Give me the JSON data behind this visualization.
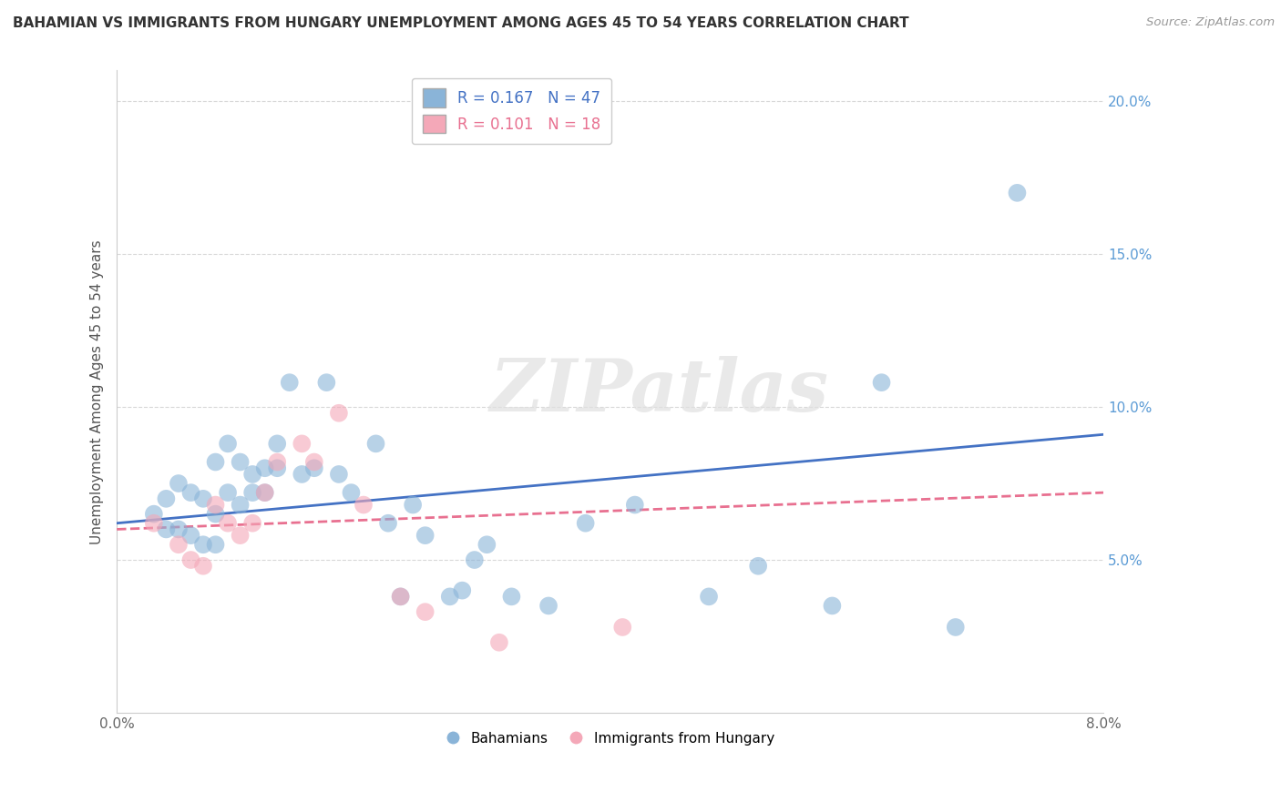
{
  "title": "BAHAMIAN VS IMMIGRANTS FROM HUNGARY UNEMPLOYMENT AMONG AGES 45 TO 54 YEARS CORRELATION CHART",
  "source": "Source: ZipAtlas.com",
  "ylabel_label": "Unemployment Among Ages 45 to 54 years",
  "x_min": 0.0,
  "x_max": 0.08,
  "y_min": 0.0,
  "y_max": 0.21,
  "x_ticks": [
    0.0,
    0.01,
    0.02,
    0.03,
    0.04,
    0.05,
    0.06,
    0.07,
    0.08
  ],
  "x_tick_labels": [
    "0.0%",
    "",
    "",
    "",
    "",
    "",
    "",
    "",
    "8.0%"
  ],
  "y_ticks": [
    0.0,
    0.05,
    0.1,
    0.15,
    0.2
  ],
  "y_tick_labels": [
    "",
    "5.0%",
    "10.0%",
    "15.0%",
    "20.0%"
  ],
  "watermark": "ZIPatlas",
  "color_blue": "#8ab4d8",
  "color_pink": "#f4a8b8",
  "legend_r1": "R = 0.167",
  "legend_n1": "N = 47",
  "legend_r2": "R = 0.101",
  "legend_n2": "N = 18",
  "bahamian_x": [
    0.003,
    0.004,
    0.004,
    0.005,
    0.005,
    0.006,
    0.006,
    0.007,
    0.007,
    0.008,
    0.008,
    0.008,
    0.009,
    0.009,
    0.01,
    0.01,
    0.011,
    0.011,
    0.012,
    0.012,
    0.013,
    0.013,
    0.014,
    0.015,
    0.016,
    0.017,
    0.018,
    0.019,
    0.021,
    0.022,
    0.023,
    0.024,
    0.025,
    0.027,
    0.028,
    0.029,
    0.03,
    0.032,
    0.035,
    0.038,
    0.042,
    0.048,
    0.052,
    0.058,
    0.062,
    0.068,
    0.073
  ],
  "bahamian_y": [
    0.065,
    0.06,
    0.07,
    0.06,
    0.075,
    0.058,
    0.072,
    0.055,
    0.07,
    0.055,
    0.065,
    0.082,
    0.072,
    0.088,
    0.068,
    0.082,
    0.072,
    0.078,
    0.072,
    0.08,
    0.08,
    0.088,
    0.108,
    0.078,
    0.08,
    0.108,
    0.078,
    0.072,
    0.088,
    0.062,
    0.038,
    0.068,
    0.058,
    0.038,
    0.04,
    0.05,
    0.055,
    0.038,
    0.035,
    0.062,
    0.068,
    0.038,
    0.048,
    0.035,
    0.108,
    0.028,
    0.17
  ],
  "hungary_x": [
    0.003,
    0.005,
    0.006,
    0.007,
    0.008,
    0.009,
    0.01,
    0.011,
    0.012,
    0.013,
    0.015,
    0.016,
    0.018,
    0.02,
    0.023,
    0.025,
    0.031,
    0.041
  ],
  "hungary_y": [
    0.062,
    0.055,
    0.05,
    0.048,
    0.068,
    0.062,
    0.058,
    0.062,
    0.072,
    0.082,
    0.088,
    0.082,
    0.098,
    0.068,
    0.038,
    0.033,
    0.023,
    0.028
  ],
  "blue_trend_x0": 0.0,
  "blue_trend_x1": 0.08,
  "blue_trend_y0": 0.062,
  "blue_trend_y1": 0.091,
  "pink_trend_x0": 0.0,
  "pink_trend_x1": 0.08,
  "pink_trend_y0": 0.06,
  "pink_trend_y1": 0.072,
  "grid_color": "#d8d8d8",
  "blue_line_color": "#4472c4",
  "pink_line_color": "#e87090"
}
